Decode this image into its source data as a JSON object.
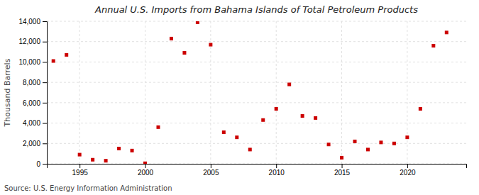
{
  "chart_data": {
    "type": "scatter",
    "title": "Annual U.S. Imports from Bahama Islands of Total Petroleum Products",
    "ylabel": "Thousand Barrels",
    "source": "Source: U.S. Energy Information Administration",
    "x": [
      1993,
      1994,
      1995,
      1996,
      1997,
      1998,
      1999,
      2000,
      2001,
      2002,
      2003,
      2004,
      2005,
      2006,
      2007,
      2008,
      2009,
      2010,
      2011,
      2012,
      2013,
      2014,
      2015,
      2016,
      2017,
      2018,
      2019,
      2020,
      2021,
      2022,
      2023
    ],
    "values": [
      10100,
      10700,
      900,
      400,
      300,
      1500,
      1300,
      50,
      3600,
      12300,
      10900,
      13900,
      11700,
      3100,
      2600,
      1400,
      4300,
      5400,
      7800,
      4700,
      4500,
      1900,
      600,
      2200,
      1400,
      2100,
      2000,
      2600,
      5400,
      11600,
      12900
    ],
    "color": "#cc0000",
    "marker": "square",
    "xlim": [
      1992.5,
      2024.5
    ],
    "xticks": [
      1995,
      2000,
      2005,
      2010,
      2015,
      2020
    ],
    "ylim": [
      0,
      14000
    ],
    "yticks": [
      0,
      {
        "value": 2000,
        "label": "2,000"
      },
      {
        "value": 4000,
        "label": "4,000"
      },
      {
        "value": 6000,
        "label": "6,000"
      },
      {
        "value": 8000,
        "label": "8,000"
      },
      {
        "value": 10000,
        "label": "10,000"
      },
      {
        "value": 12000,
        "label": "12,000"
      },
      {
        "value": 14000,
        "label": "14,000"
      }
    ],
    "grid": true
  }
}
